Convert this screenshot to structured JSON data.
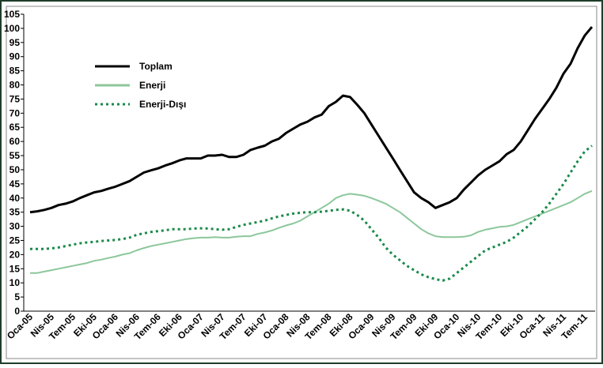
{
  "chart_data": {
    "type": "line",
    "categories": [
      "Oca-05",
      null,
      null,
      "Nis-05",
      null,
      null,
      "Tem-05",
      null,
      null,
      "Eki-05",
      null,
      null,
      "Oca-06",
      null,
      null,
      "Nis-06",
      null,
      null,
      "Tem-06",
      null,
      null,
      "Eki-06",
      null,
      null,
      "Oca-07",
      null,
      null,
      "Nis-07",
      null,
      null,
      "Tem-07",
      null,
      null,
      "Eki-07",
      null,
      null,
      "Oca-08",
      null,
      null,
      "Nis-08",
      null,
      null,
      "Tem-08",
      null,
      null,
      "Eki-08",
      null,
      null,
      "Oca-09",
      null,
      null,
      "Nis-09",
      null,
      null,
      "Tem-09",
      null,
      null,
      "Eki-09",
      null,
      null,
      "Oca-10",
      null,
      null,
      "Nis-10",
      null,
      null,
      "Tem-10",
      null,
      null,
      "Eki-10",
      null,
      null,
      "Oca-11",
      null,
      null,
      "Nis-11",
      null,
      null,
      "Tem-11",
      null
    ],
    "series": [
      {
        "name": "Toplam",
        "color": "#000000",
        "style": "solid",
        "values": [
          35,
          35.3,
          35.8,
          36.5,
          37.5,
          38,
          38.8,
          40,
          41,
          42,
          42.5,
          43.3,
          44,
          45,
          46,
          47.5,
          49,
          49.8,
          50.5,
          51.5,
          52.3,
          53.3,
          54,
          54,
          54,
          55,
          55,
          55.3,
          54.5,
          54.5,
          55.3,
          57,
          57.8,
          58.5,
          60,
          61,
          63,
          64.5,
          66,
          67,
          68.5,
          69.5,
          72.5,
          74,
          76.2,
          75.7,
          73,
          70,
          66,
          62,
          58,
          54,
          50,
          46,
          42,
          40,
          38.5,
          36.5,
          37.5,
          38.5,
          40,
          43,
          45.5,
          48,
          50,
          51.5,
          53,
          55.5,
          57,
          60,
          64,
          68,
          71.5,
          75,
          79,
          84,
          87.5,
          93,
          97.5,
          100.5
        ]
      },
      {
        "name": "Enerji",
        "color": "#8cc79b",
        "style": "solid",
        "values": [
          13.5,
          13.5,
          14,
          14.5,
          15,
          15.5,
          16,
          16.5,
          17,
          17.8,
          18.2,
          18.8,
          19.3,
          20,
          20.5,
          21.5,
          22.3,
          23,
          23.5,
          24,
          24.5,
          25,
          25.5,
          25.8,
          26,
          26,
          26.2,
          26,
          26,
          26.3,
          26.5,
          26.5,
          27.3,
          27.8,
          28.5,
          29.5,
          30.3,
          31,
          32,
          33.5,
          35,
          36.5,
          38,
          40,
          41,
          41.5,
          41.2,
          40.8,
          40,
          39,
          38,
          36.5,
          35,
          33,
          31,
          29,
          27.5,
          26.5,
          26.2,
          26.2,
          26.2,
          26.3,
          26.8,
          28,
          28.8,
          29.3,
          29.8,
          30,
          30.5,
          31.5,
          32.5,
          33.5,
          34.5,
          35.5,
          36.5,
          37.5,
          38.5,
          40,
          41.5,
          42.5
        ]
      },
      {
        "name": "Enerji-Dışı",
        "color": "#1a8a4a",
        "style": "dotted",
        "values": [
          22,
          22,
          22,
          22.2,
          22.5,
          23,
          23.5,
          24,
          24.3,
          24.5,
          24.8,
          25,
          25.2,
          25.5,
          26,
          27,
          27.5,
          28,
          28.3,
          28.6,
          29,
          29,
          29,
          29.2,
          29.3,
          29.2,
          29,
          28.8,
          29,
          29.8,
          30.5,
          31,
          31.5,
          32,
          32.8,
          33.5,
          34,
          34.5,
          34.8,
          35,
          35,
          35.2,
          35.5,
          35.8,
          36,
          35.5,
          34,
          32,
          29,
          26,
          22.5,
          20,
          18,
          16,
          14.5,
          13,
          12,
          11.3,
          10.8,
          11.5,
          13.5,
          15.5,
          17.5,
          19.5,
          21.5,
          22.5,
          23.5,
          24.5,
          26,
          28,
          30,
          32.5,
          35,
          38,
          41.5,
          45,
          49,
          53,
          56.5,
          58.5
        ]
      }
    ],
    "ylim": [
      0,
      105
    ],
    "yticks": [
      0,
      5,
      10,
      15,
      20,
      25,
      30,
      35,
      40,
      45,
      50,
      55,
      60,
      65,
      70,
      75,
      80,
      85,
      90,
      95,
      100,
      105
    ],
    "legend": "upper left"
  }
}
